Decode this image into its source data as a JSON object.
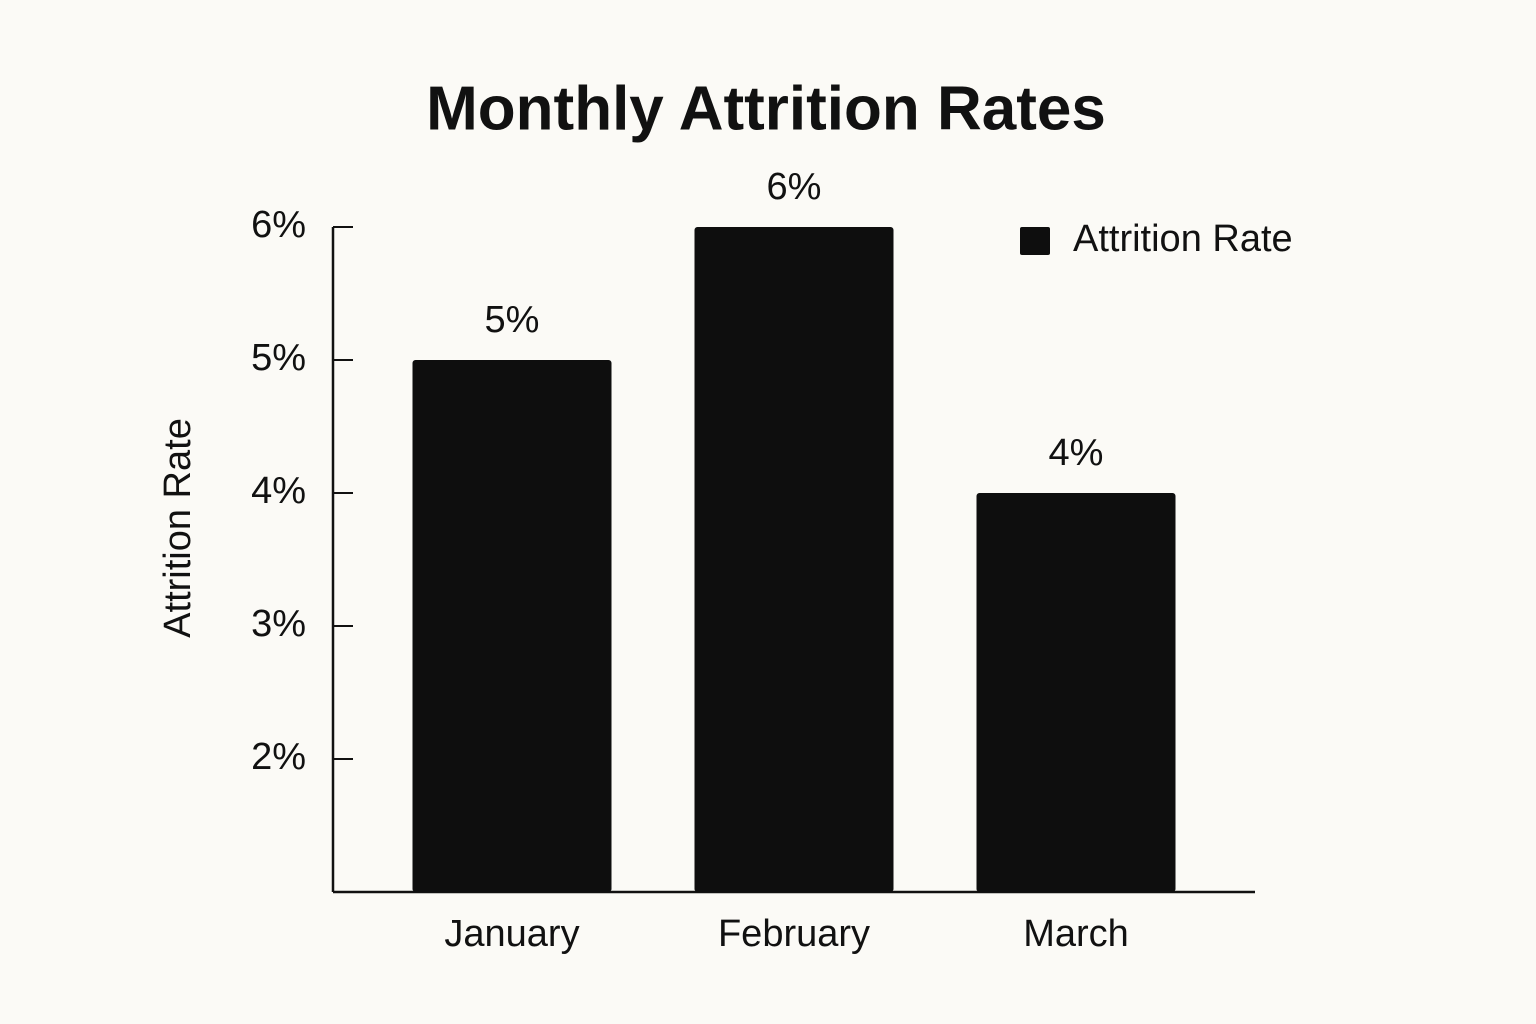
{
  "chart_data": {
    "type": "bar",
    "title": "Monthly Attrition Rates",
    "y_label": "Attrition Rate",
    "categories": [
      "January",
      "February",
      "March"
    ],
    "series": [
      {
        "name": "Attrition Rate",
        "color": "#0e0e0e",
        "values": [
          5,
          6,
          4
        ],
        "value_labels": [
          "5%",
          "6%",
          "4%"
        ]
      }
    ],
    "ylim": [
      1,
      6
    ],
    "yticks": [
      {
        "value": 2,
        "label": "2%"
      },
      {
        "value": 3,
        "label": "3%"
      },
      {
        "value": 4,
        "label": "4%"
      },
      {
        "value": 5,
        "label": "5%"
      },
      {
        "value": 6,
        "label": "6%"
      }
    ],
    "legend": "top-right"
  }
}
